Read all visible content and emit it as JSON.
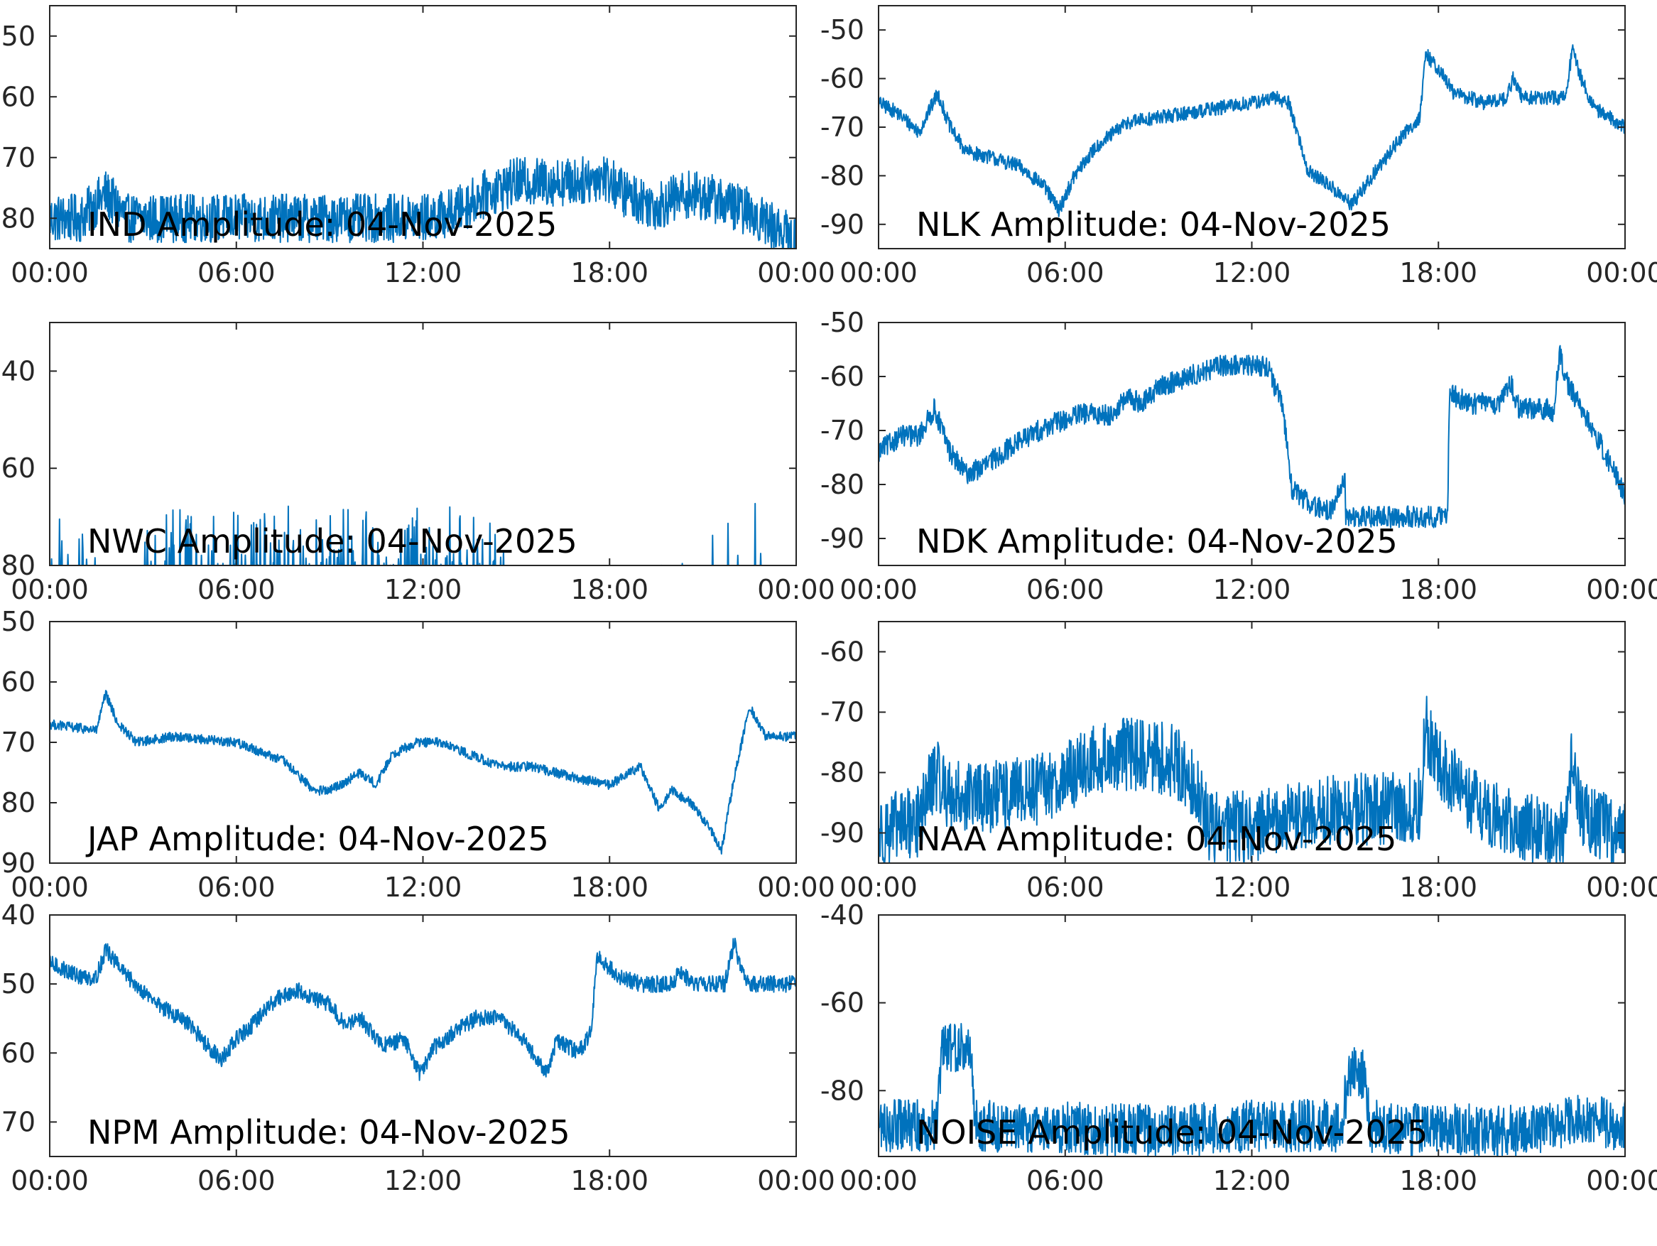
{
  "style": {
    "line_color": "#0072BD",
    "axis_color": "#262626",
    "background": "#ffffff"
  },
  "chart_data": [
    {
      "id": "ind",
      "type": "line",
      "title": "IND Amplitude: 04-Nov-2025",
      "xlabel": "",
      "ylabel": "",
      "xlim": [
        0,
        24
      ],
      "ylim": [
        -85,
        -45
      ],
      "yticks": [
        -50,
        -60,
        -70,
        -80
      ],
      "xticks": [
        0,
        6,
        12,
        18,
        24
      ],
      "xticklabels": [
        "00:00",
        "06:00",
        "12:00",
        "18:00",
        "00:00"
      ],
      "ytick_label_suffixes": [
        "50",
        "60",
        "70",
        "80"
      ],
      "noise": 4.0,
      "x": [
        0,
        1,
        1.8,
        2.5,
        4,
        6,
        8,
        10,
        12,
        13,
        14,
        15,
        16,
        17,
        17.8,
        18.5,
        19.5,
        20.5,
        21.5,
        22.5,
        23.5,
        24
      ],
      "y": [
        -80,
        -80,
        -76,
        -80,
        -80,
        -80,
        -80,
        -80,
        -80,
        -79,
        -76,
        -74,
        -74,
        -74,
        -73,
        -76,
        -78,
        -76,
        -77,
        -79,
        -82,
        -84
      ]
    },
    {
      "id": "nlk",
      "type": "line",
      "title": "NLK Amplitude: 04-Nov-2025",
      "xlabel": "",
      "ylabel": "",
      "xlim": [
        0,
        24
      ],
      "ylim": [
        -95,
        -45
      ],
      "yticks": [
        -50,
        -60,
        -70,
        -80,
        -90
      ],
      "xticks": [
        0,
        6,
        12,
        18,
        24
      ],
      "xticklabels": [
        "00:00",
        "06:00",
        "12:00",
        "18:00",
        "00:00"
      ],
      "ytick_labels": [
        "-50",
        "-60",
        "-70",
        "-80",
        "-90"
      ],
      "noise": 1.5,
      "x": [
        0,
        0.6,
        1.3,
        1.9,
        2.3,
        2.8,
        3.5,
        4.5,
        5.3,
        5.8,
        6.3,
        7,
        8,
        9,
        10,
        11,
        12,
        12.8,
        13.2,
        13.8,
        14.5,
        15.2,
        16,
        16.8,
        17.4,
        17.6,
        18,
        18.5,
        19.5,
        20.2,
        20.4,
        20.7,
        21.5,
        22.1,
        22.3,
        22.6,
        23,
        24
      ],
      "y": [
        -65,
        -67,
        -71,
        -63,
        -70,
        -75,
        -76,
        -78,
        -82,
        -87,
        -80,
        -74,
        -69,
        -68,
        -67,
        -66,
        -65,
        -64,
        -65,
        -79,
        -82,
        -86,
        -79,
        -72,
        -68,
        -55,
        -58,
        -63,
        -65,
        -64,
        -60,
        -64,
        -64,
        -64,
        -54,
        -60,
        -66,
        -70
      ]
    },
    {
      "id": "nwc",
      "type": "line",
      "title": "NWC Amplitude: 04-Nov-2025",
      "xlabel": "",
      "ylabel": "",
      "xlim": [
        0,
        24
      ],
      "ylim": [
        -80,
        -30
      ],
      "yticks": [
        -40,
        -60,
        -80
      ],
      "xticks": [
        0,
        6,
        12,
        18,
        24
      ],
      "xticklabels": [
        "00:00",
        "06:00",
        "12:00",
        "18:00",
        "00:00"
      ],
      "ytick_label_suffixes": [
        "40",
        "60",
        "80"
      ],
      "spiky": true,
      "x": [
        0,
        24
      ],
      "y": [
        -81,
        -81
      ]
    },
    {
      "id": "ndk",
      "type": "line",
      "title": "NDK Amplitude: 04-Nov-2025",
      "xlabel": "",
      "ylabel": "",
      "xlim": [
        0,
        24
      ],
      "ylim": [
        -95,
        -50
      ],
      "yticks": [
        -50,
        -60,
        -70,
        -80,
        -90
      ],
      "xticks": [
        0,
        6,
        12,
        18,
        24
      ],
      "xticklabels": [
        "00:00",
        "06:00",
        "12:00",
        "18:00",
        "00:00"
      ],
      "ytick_labels": [
        "-50",
        "-60",
        "-70",
        "-80",
        "-90"
      ],
      "noise": 2.0,
      "x": [
        0,
        0.7,
        1.3,
        1.8,
        2.3,
        2.8,
        3.3,
        4.5,
        5.5,
        6.5,
        7.5,
        8,
        8.5,
        9,
        10,
        11,
        12,
        12.5,
        13,
        13.3,
        14,
        14.5,
        15,
        15.02,
        16,
        17,
        18,
        18.3,
        18.35,
        19,
        20,
        20.3,
        20.6,
        21.5,
        21.7,
        21.9,
        22.2,
        23,
        24
      ],
      "y": [
        -74,
        -71,
        -71,
        -66,
        -74,
        -78,
        -77,
        -72,
        -69,
        -67,
        -67,
        -64,
        -65,
        -62,
        -60,
        -58,
        -58,
        -58,
        -66,
        -81,
        -84,
        -85,
        -79,
        -86,
        -86,
        -86,
        -86,
        -86,
        -63,
        -65,
        -65,
        -61,
        -66,
        -66,
        -67,
        -56,
        -62,
        -70,
        -82
      ]
    },
    {
      "id": "jap",
      "type": "line",
      "title": "JAP Amplitude: 04-Nov-2025",
      "xlabel": "",
      "ylabel": "",
      "xlim": [
        0,
        24
      ],
      "ylim": [
        -90,
        -50
      ],
      "yticks": [
        -50,
        -60,
        -70,
        -80,
        -90
      ],
      "xticks": [
        0,
        6,
        12,
        18,
        24
      ],
      "xticklabels": [
        "00:00",
        "06:00",
        "12:00",
        "18:00",
        "00:00"
      ],
      "ytick_label_suffixes": [
        "50",
        "60",
        "70",
        "80",
        "90"
      ],
      "noise": 0.8,
      "x": [
        0,
        1.5,
        1.8,
        2.2,
        2.8,
        4,
        6,
        7.5,
        8.5,
        9,
        10,
        10.5,
        11,
        11.8,
        12.5,
        13.5,
        14.5,
        15.5,
        17,
        18,
        19,
        19.6,
        20,
        20.6,
        21.2,
        21.6,
        22,
        22.5,
        23,
        24
      ],
      "y": [
        -67,
        -68,
        -62,
        -67,
        -70,
        -69,
        -70,
        -73,
        -78,
        -78,
        -75,
        -77,
        -72,
        -70,
        -70,
        -72,
        -74,
        -74,
        -76,
        -77,
        -74,
        -81,
        -78,
        -80,
        -84,
        -88,
        -76,
        -64,
        -69,
        -69
      ]
    },
    {
      "id": "naa",
      "type": "line",
      "title": "NAA Amplitude: 04-Nov-2025",
      "xlabel": "",
      "ylabel": "",
      "xlim": [
        0,
        24
      ],
      "ylim": [
        -95,
        -55
      ],
      "yticks": [
        -60,
        -70,
        -80,
        -90
      ],
      "xticks": [
        0,
        6,
        12,
        18,
        24
      ],
      "xticklabels": [
        "00:00",
        "06:00",
        "12:00",
        "18:00",
        "00:00"
      ],
      "ytick_labels": [
        "-60",
        "-70",
        "-80",
        "-90"
      ],
      "noise": 6.0,
      "x": [
        0,
        1.3,
        1.8,
        2.3,
        3,
        4,
        5,
        6,
        7,
        7.8,
        8.5,
        9.5,
        10.3,
        10.6,
        11,
        12,
        13,
        14,
        15,
        16,
        17,
        17.4,
        17.6,
        18,
        19,
        20,
        21,
        22,
        22.3,
        22.6,
        23,
        24
      ],
      "y": [
        -90,
        -88,
        -80,
        -84,
        -84,
        -84,
        -83,
        -81,
        -78,
        -77,
        -77,
        -78,
        -83,
        -89,
        -89,
        -89,
        -88,
        -87,
        -86,
        -86,
        -86,
        -85,
        -73,
        -78,
        -85,
        -88,
        -89,
        -91,
        -78,
        -86,
        -88,
        -91
      ]
    },
    {
      "id": "npm",
      "type": "line",
      "title": "NPM Amplitude: 04-Nov-2025",
      "xlabel": "",
      "ylabel": "",
      "xlim": [
        0,
        24
      ],
      "ylim": [
        -75,
        -40
      ],
      "yticks": [
        -40,
        -50,
        -60,
        -70
      ],
      "xticks": [
        0,
        6,
        12,
        18,
        24
      ],
      "xticklabels": [
        "00:00",
        "06:00",
        "12:00",
        "18:00",
        "00:00"
      ],
      "ytick_label_suffixes": [
        "40",
        "50",
        "60",
        "70"
      ],
      "noise": 1.2,
      "x": [
        0,
        1,
        1.5,
        1.8,
        2.5,
        3.5,
        4.5,
        5.5,
        6,
        6.5,
        7.3,
        8,
        9,
        9.5,
        10,
        10.7,
        11.4,
        11.9,
        12.4,
        13,
        13.7,
        14.5,
        15.2,
        16,
        16.3,
        17,
        17.4,
        17.6,
        18.3,
        19,
        20,
        20.3,
        20.6,
        21,
        21.7,
        22,
        22.3,
        22.6,
        23,
        24
      ],
      "y": [
        -47,
        -49,
        -49,
        -45,
        -49,
        -53,
        -56,
        -61,
        -58,
        -56,
        -52,
        -51,
        -53,
        -56,
        -55,
        -59,
        -58,
        -63,
        -59,
        -57,
        -55,
        -55,
        -58,
        -63,
        -58,
        -60,
        -57,
        -46,
        -49,
        -50,
        -50,
        -48,
        -50,
        -50,
        -50,
        -44,
        -49,
        -50,
        -50,
        -50
      ]
    },
    {
      "id": "noise",
      "type": "line",
      "title": "NOISE Amplitude: 04-Nov-2025",
      "xlabel": "",
      "ylabel": "",
      "xlim": [
        0,
        24
      ],
      "ylim": [
        -95,
        -40
      ],
      "yticks": [
        -40,
        -60,
        -80
      ],
      "xticks": [
        0,
        6,
        12,
        18,
        24
      ],
      "xticklabels": [
        "00:00",
        "06:00",
        "12:00",
        "18:00",
        "00:00"
      ],
      "ytick_labels": [
        "-40",
        "-60",
        "-80"
      ],
      "noise": 6.0,
      "x": [
        0,
        1.9,
        2.0,
        2.3,
        2.5,
        2.8,
        3.0,
        3.1,
        4,
        8,
        10,
        12,
        13,
        14,
        14.9,
        15.1,
        15.6,
        15.8,
        17,
        20,
        21.5,
        22,
        23,
        24
      ],
      "y": [
        -88,
        -88,
        -72,
        -70,
        -70,
        -71,
        -71,
        -88,
        -88,
        -89,
        -89,
        -88,
        -88,
        -88,
        -88,
        -76,
        -76,
        -88,
        -89,
        -89,
        -89,
        -87,
        -87,
        -88
      ]
    }
  ]
}
